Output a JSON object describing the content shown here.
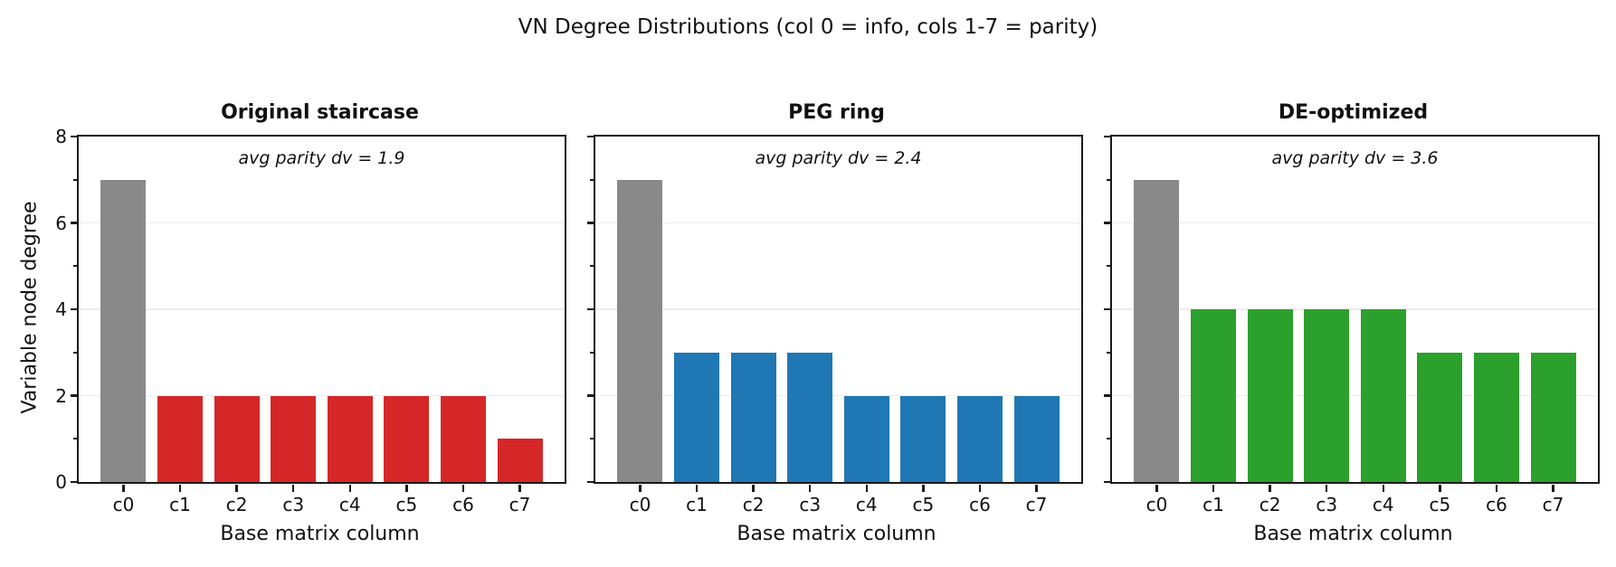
{
  "suptitle": "VN Degree Distributions (col 0 = info, cols 1-7 = parity)",
  "colors": {
    "info_bar": "#898989",
    "grid": "#ededed",
    "axis": "#1a1a1a",
    "text": "#111111",
    "red": "#d62728",
    "blue": "#1f77b4",
    "green": "#2ca02c"
  },
  "chart_data": [
    {
      "type": "bar",
      "title": "Original staircase",
      "annotation": "avg parity dv = 1.9",
      "categories": [
        "c0",
        "c1",
        "c2",
        "c3",
        "c4",
        "c5",
        "c6",
        "c7"
      ],
      "values": [
        7,
        2,
        2,
        2,
        2,
        2,
        2,
        1
      ],
      "bar_color": "#d62728",
      "info_bar_color": "#898989",
      "xlabel": "Base matrix column",
      "ylabel": "Variable node degree",
      "ylim": [
        0,
        8
      ],
      "yticks": [
        0,
        2,
        4,
        6,
        8
      ],
      "minor_yticks": [
        1,
        3,
        5,
        7
      ],
      "show_ytick_labels": true,
      "grid": true
    },
    {
      "type": "bar",
      "title": "PEG ring",
      "annotation": "avg parity dv = 2.4",
      "categories": [
        "c0",
        "c1",
        "c2",
        "c3",
        "c4",
        "c5",
        "c6",
        "c7"
      ],
      "values": [
        7,
        3,
        3,
        3,
        2,
        2,
        2,
        2
      ],
      "bar_color": "#1f77b4",
      "info_bar_color": "#898989",
      "xlabel": "Base matrix column",
      "ylim": [
        0,
        8
      ],
      "yticks": [
        0,
        2,
        4,
        6,
        8
      ],
      "minor_yticks": [
        1,
        3,
        5,
        7
      ],
      "show_ytick_labels": false,
      "grid": true
    },
    {
      "type": "bar",
      "title": "DE-optimized",
      "annotation": "avg parity dv = 3.6",
      "categories": [
        "c0",
        "c1",
        "c2",
        "c3",
        "c4",
        "c5",
        "c6",
        "c7"
      ],
      "values": [
        7,
        4,
        4,
        4,
        4,
        3,
        3,
        3
      ],
      "bar_color": "#2ca02c",
      "info_bar_color": "#898989",
      "xlabel": "Base matrix column",
      "ylim": [
        0,
        8
      ],
      "yticks": [
        0,
        2,
        4,
        6,
        8
      ],
      "minor_yticks": [
        1,
        3,
        5,
        7
      ],
      "show_ytick_labels": false,
      "grid": true
    }
  ]
}
